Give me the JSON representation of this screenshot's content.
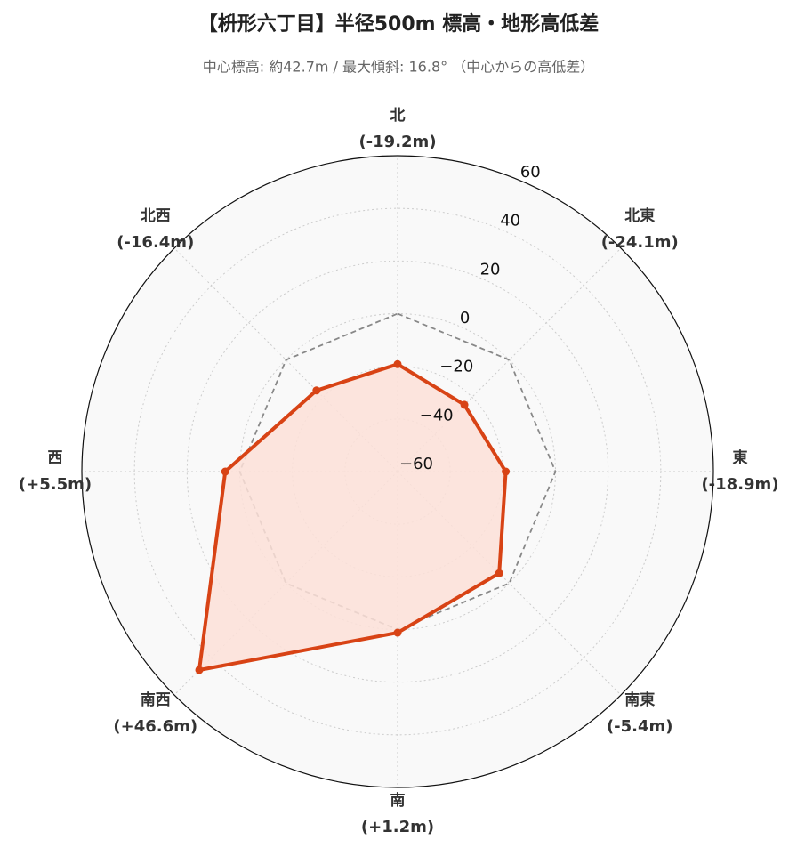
{
  "chart_data": {
    "type": "radar",
    "title": "【枡形六丁目】半径500m 標高・地形高低差",
    "subtitle": "中心標高: 約42.7m / 最大傾斜: 16.8° （中心からの高低差）",
    "categories": [
      "北",
      "北東",
      "東",
      "南東",
      "南",
      "南西",
      "西",
      "北西"
    ],
    "values": [
      -19.2,
      -24.1,
      -18.9,
      -5.4,
      1.2,
      46.6,
      5.5,
      -16.4
    ],
    "value_labels": [
      "(-19.2m)",
      "(-24.1m)",
      "(-18.9m)",
      "(-5.4m)",
      "(+1.2m)",
      "(+46.6m)",
      "(+5.5m)",
      "(-16.4m)"
    ],
    "color": "#d84315",
    "fill_color": "#fde0d8",
    "reference_value": 0,
    "reference_color": "#888888",
    "ylim": [
      -60,
      60
    ],
    "yticks": [
      {
        "value": -60,
        "label": "−60"
      },
      {
        "value": -40,
        "label": "−40"
      },
      {
        "value": -20,
        "label": "−20"
      },
      0,
      20,
      40,
      60
    ],
    "grid": true
  }
}
